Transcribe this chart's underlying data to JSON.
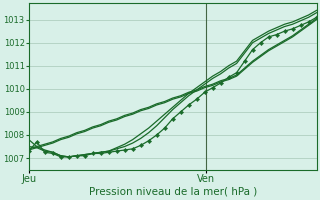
{
  "background_color": "#cce8d8",
  "plot_bg_color": "#d8f0e8",
  "grid_color": "#a8c8b8",
  "line_color": "#1a6b2a",
  "marker_color": "#1a6b2a",
  "axis_label": "Pression niveau de la mer( hPa )",
  "x_ticks_labels": [
    "Jeu",
    "Ven"
  ],
  "x_ticks_pos": [
    0.0,
    0.615
  ],
  "ylim": [
    1006.5,
    1013.7
  ],
  "yticks": [
    1007,
    1008,
    1009,
    1010,
    1011,
    1012,
    1013
  ],
  "vline_pos": 0.615,
  "n_points": 37,
  "figsize": [
    3.2,
    2.0
  ],
  "dpi": 100,
  "series_marker": [
    1007.3,
    1007.7,
    1007.25,
    1007.2,
    1007.05,
    1007.05,
    1007.1,
    1007.1,
    1007.2,
    1007.2,
    1007.25,
    1007.3,
    1007.35,
    1007.4,
    1007.55,
    1007.75,
    1008.0,
    1008.3,
    1008.7,
    1009.0,
    1009.3,
    1009.55,
    1009.85,
    1010.05,
    1010.25,
    1010.5,
    1010.7,
    1011.2,
    1011.7,
    1012.0,
    1012.25,
    1012.35,
    1012.5,
    1012.6,
    1012.75,
    1012.9,
    1013.1
  ],
  "series_smooth1": [
    1007.5,
    1007.45,
    1007.3,
    1007.25,
    1007.1,
    1007.05,
    1007.1,
    1007.15,
    1007.2,
    1007.25,
    1007.3,
    1007.4,
    1007.5,
    1007.65,
    1007.85,
    1008.1,
    1008.4,
    1008.75,
    1009.1,
    1009.4,
    1009.7,
    1009.95,
    1010.2,
    1010.45,
    1010.65,
    1010.9,
    1011.1,
    1011.55,
    1012.0,
    1012.2,
    1012.4,
    1012.55,
    1012.7,
    1012.8,
    1012.95,
    1013.1,
    1013.3
  ],
  "series_smooth2": [
    1007.8,
    1007.5,
    1007.35,
    1007.25,
    1007.1,
    1007.05,
    1007.1,
    1007.15,
    1007.2,
    1007.25,
    1007.3,
    1007.45,
    1007.6,
    1007.8,
    1008.05,
    1008.3,
    1008.6,
    1008.9,
    1009.2,
    1009.5,
    1009.8,
    1010.05,
    1010.3,
    1010.55,
    1010.75,
    1011.0,
    1011.2,
    1011.65,
    1012.1,
    1012.3,
    1012.5,
    1012.65,
    1012.8,
    1012.9,
    1013.05,
    1013.2,
    1013.4
  ],
  "series_linear1": [
    1007.4,
    1007.5,
    1007.6,
    1007.7,
    1007.85,
    1007.95,
    1008.1,
    1008.2,
    1008.35,
    1008.45,
    1008.6,
    1008.7,
    1008.85,
    1008.95,
    1009.1,
    1009.2,
    1009.35,
    1009.45,
    1009.6,
    1009.7,
    1009.85,
    1009.95,
    1010.1,
    1010.2,
    1010.35,
    1010.45,
    1010.6,
    1010.9,
    1011.2,
    1011.45,
    1011.7,
    1011.9,
    1012.1,
    1012.3,
    1012.55,
    1012.8,
    1013.05
  ],
  "series_linear2": [
    1007.35,
    1007.45,
    1007.55,
    1007.65,
    1007.8,
    1007.9,
    1008.05,
    1008.15,
    1008.3,
    1008.4,
    1008.55,
    1008.65,
    1008.8,
    1008.9,
    1009.05,
    1009.15,
    1009.3,
    1009.4,
    1009.55,
    1009.65,
    1009.8,
    1009.9,
    1010.05,
    1010.15,
    1010.3,
    1010.4,
    1010.55,
    1010.85,
    1011.15,
    1011.4,
    1011.65,
    1011.85,
    1012.05,
    1012.25,
    1012.5,
    1012.75,
    1013.0
  ]
}
